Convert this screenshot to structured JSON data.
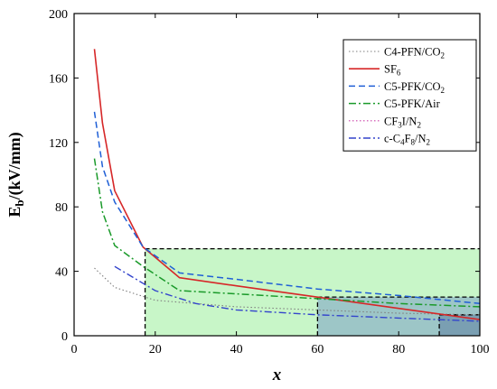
{
  "chart_data": {
    "type": "line",
    "xlabel": "x",
    "ylabel_main": "E",
    "ylabel_sub": "b",
    "ylabel_rest": "/(kV/mm)",
    "xlim": [
      0,
      100
    ],
    "ylim": [
      0,
      200
    ],
    "x_ticks": [
      0,
      20,
      40,
      60,
      80,
      100
    ],
    "y_ticks": [
      0,
      40,
      80,
      120,
      160,
      200
    ],
    "grid": false,
    "legend_position": "top-right",
    "series": [
      {
        "name_parts": [
          {
            "t": "C4-PFN/CO"
          },
          {
            "t": "2",
            "sub": true
          }
        ],
        "color": "#7f7f7f",
        "dash": "1.5,2.5",
        "width": 1.1,
        "x": [
          5,
          10,
          20,
          30,
          40,
          60,
          80,
          100
        ],
        "y": [
          42,
          30,
          22,
          20,
          18,
          16,
          14,
          13
        ]
      },
      {
        "name_parts": [
          {
            "t": "SF"
          },
          {
            "t": "6",
            "sub": true
          }
        ],
        "color": "#d62728",
        "dash": "",
        "width": 1.6,
        "x": [
          5,
          7,
          10,
          17,
          26,
          40,
          60,
          80,
          100
        ],
        "y": [
          178,
          132,
          90,
          55,
          36,
          31,
          24,
          17,
          10
        ]
      },
      {
        "name_parts": [
          {
            "t": "C5-PFK/CO"
          },
          {
            "t": "2",
            "sub": true
          }
        ],
        "color": "#1f5fd6",
        "dash": "7,4",
        "width": 1.5,
        "x": [
          5,
          7,
          10,
          17,
          26,
          40,
          60,
          80,
          100
        ],
        "y": [
          139,
          105,
          83,
          55,
          39,
          35,
          29,
          25,
          20
        ]
      },
      {
        "name_parts": [
          {
            "t": "C5-PFK/Air"
          }
        ],
        "color": "#1a9a2a",
        "dash": "8,3,2,3",
        "width": 1.5,
        "x": [
          5,
          7,
          10,
          17,
          26,
          40,
          60,
          80,
          100
        ],
        "y": [
          110,
          77,
          56,
          43,
          28,
          26,
          23,
          20,
          18
        ]
      },
      {
        "name_parts": [
          {
            "t": "CF"
          },
          {
            "t": "3",
            "sub": true
          },
          {
            "t": "I/N"
          },
          {
            "t": "2",
            "sub": true
          }
        ],
        "color": "#cc44aa",
        "dash": "1.5,2.5",
        "width": 1.1,
        "x": [],
        "y": []
      },
      {
        "name_parts": [
          {
            "t": "c-C"
          },
          {
            "t": "4",
            "sub": true
          },
          {
            "t": "F"
          },
          {
            "t": "8",
            "sub": true
          },
          {
            "t": "/N"
          },
          {
            "t": "2",
            "sub": true
          }
        ],
        "color": "#3344cc",
        "dash": "8,3,2,3",
        "width": 1.4,
        "x": [
          10,
          20,
          30,
          40,
          60,
          80,
          100
        ],
        "y": [
          43,
          28,
          20,
          16,
          13,
          11,
          9
        ]
      }
    ],
    "regions": [
      {
        "x0": 17.5,
        "x1": 100,
        "y0": 0,
        "y1": 54,
        "fill": "#b6f3b6",
        "opacity": 0.75
      },
      {
        "x0": 60,
        "x1": 100,
        "y0": 0,
        "y1": 24,
        "fill": "#7a9ec6",
        "opacity": 0.55
      },
      {
        "x0": 90,
        "x1": 100,
        "y0": 0,
        "y1": 13,
        "fill": "#4f6f9a",
        "opacity": 0.45
      }
    ],
    "reference_lines": [
      {
        "x0": 17.5,
        "x1": 100,
        "y": 54
      },
      {
        "x0": 60,
        "x1": 100,
        "y": 24
      },
      {
        "x0": 90,
        "x1": 100,
        "y": 13
      },
      {
        "x": 17.5,
        "y0": 0,
        "y1": 54
      },
      {
        "x": 60,
        "y0": 0,
        "y1": 24
      },
      {
        "x": 90,
        "y0": 0,
        "y1": 13
      }
    ]
  }
}
